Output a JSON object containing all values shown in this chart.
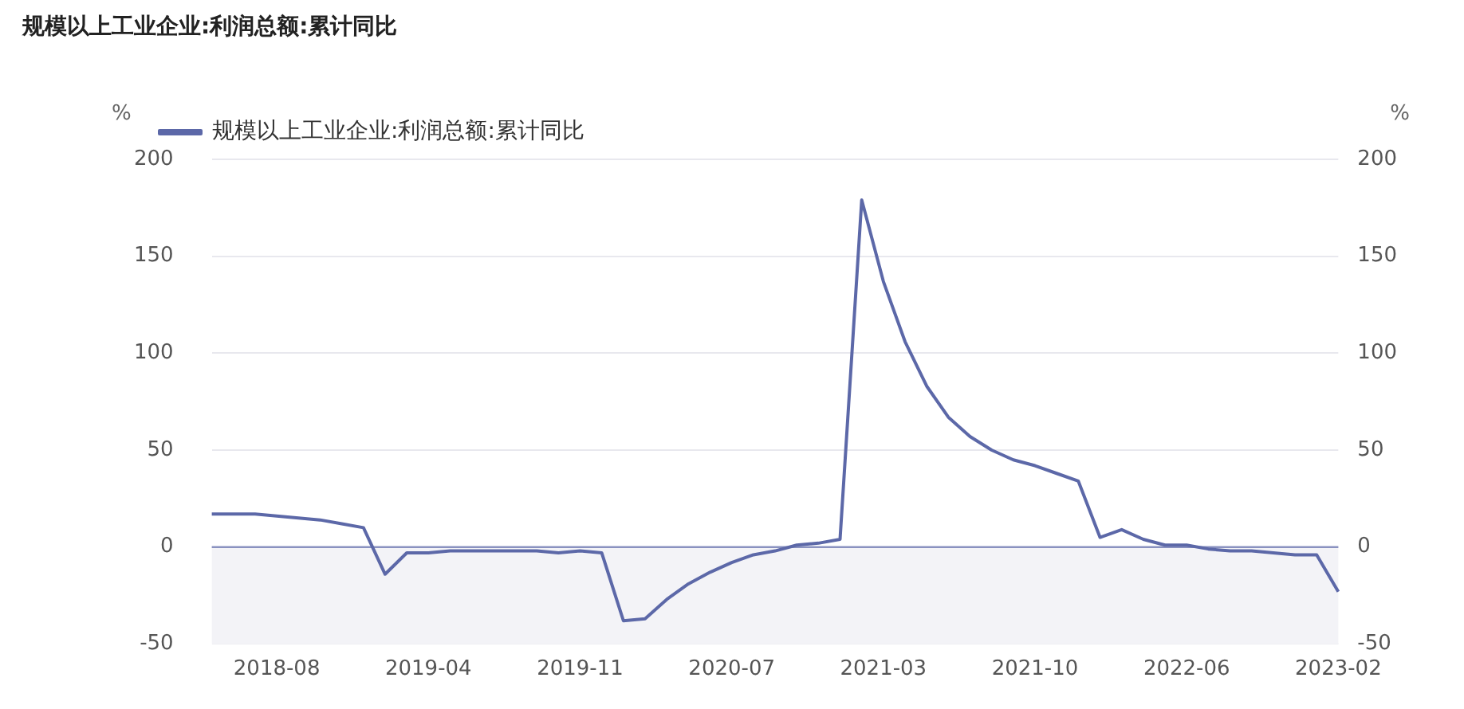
{
  "chart_data": {
    "type": "line",
    "title": "规模以上工业企业:利润总额:累计同比",
    "ylabel": "%",
    "y2label": "%",
    "categories": [
      null,
      null,
      null,
      "2018-08",
      null,
      null,
      null,
      null,
      null,
      null,
      "2019-04",
      null,
      null,
      null,
      null,
      null,
      null,
      "2019-11",
      null,
      null,
      null,
      null,
      null,
      null,
      "2020-07",
      null,
      null,
      null,
      null,
      null,
      null,
      "2021-03",
      null,
      null,
      null,
      null,
      null,
      null,
      "2021-10",
      null,
      null,
      null,
      null,
      null,
      null,
      "2022-06",
      null,
      null,
      null,
      null,
      null,
      null,
      "2023-02"
    ],
    "series": [
      {
        "name": "规模以上工业企业:利润总额:累计同比",
        "color": "#5c68a8",
        "values": [
          17,
          17,
          17,
          16,
          15,
          14,
          12,
          10,
          -14,
          -3,
          -3,
          -2,
          -2,
          -2,
          -2,
          -2,
          -3,
          -2,
          -3,
          -38,
          -37,
          -27,
          -19,
          -13,
          -8,
          -4,
          -2,
          1,
          2,
          4,
          179,
          137,
          106,
          83,
          67,
          57,
          50,
          45,
          42,
          38,
          34,
          5,
          9,
          4,
          1,
          1,
          -1,
          -2,
          -2,
          -3,
          -4,
          -4,
          -23
        ]
      }
    ],
    "ylim": [
      -50,
      200
    ],
    "yticks": [
      -50,
      0,
      50,
      100,
      150,
      200
    ],
    "y2lim": [
      -50,
      200
    ],
    "y2ticks": [
      -50,
      0,
      50,
      100,
      150,
      200
    ],
    "grid": "y",
    "legend": "top left",
    "marker": "none",
    "line_style": "solid",
    "bands": [
      {
        "axis": "y",
        "from": -50,
        "to": 0,
        "color": "#f3f3f7"
      }
    ],
    "ref_lines": [
      {
        "axis": "y",
        "value": 0,
        "color": "#8a92c0"
      }
    ]
  }
}
